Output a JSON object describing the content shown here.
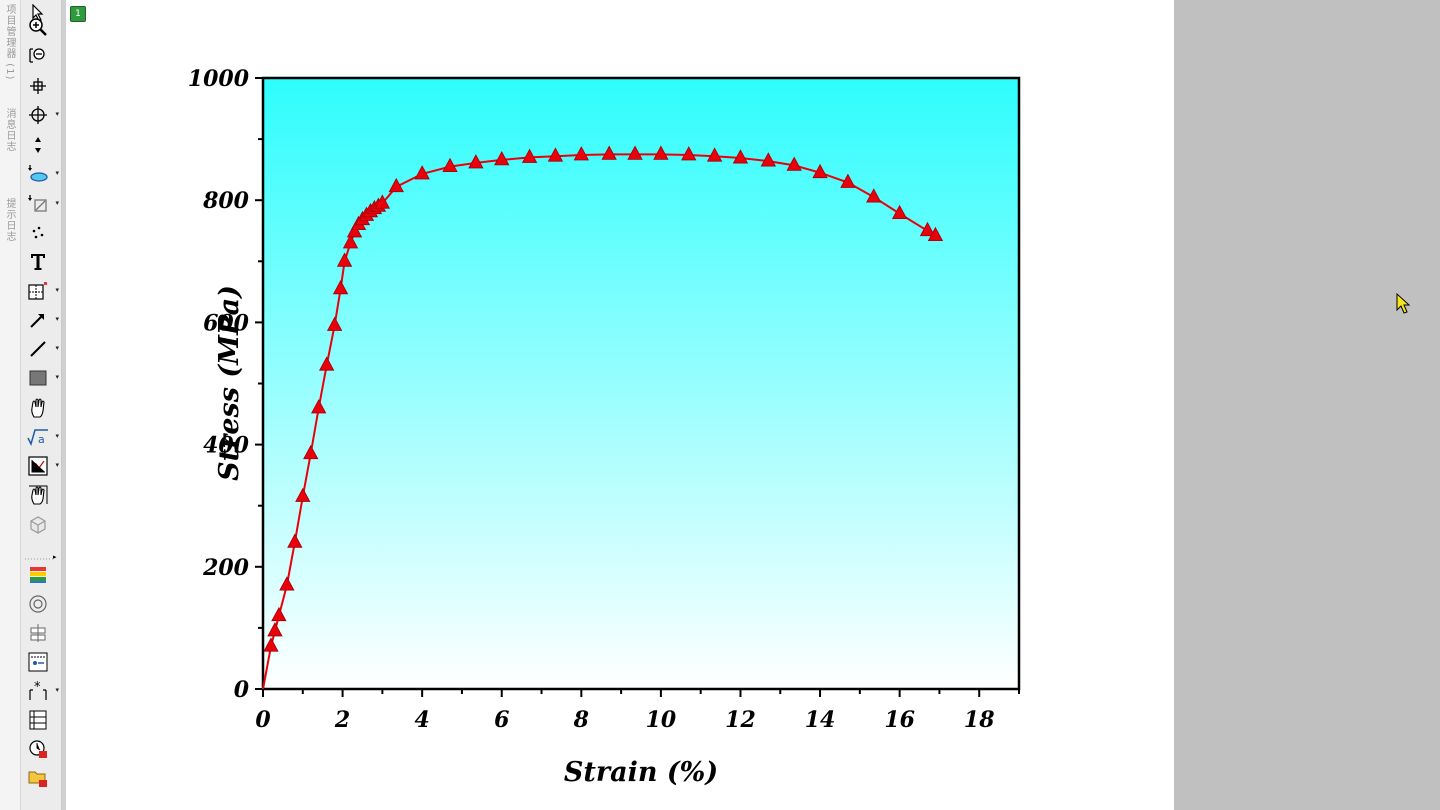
{
  "side_tabs": [
    "项目管理器 (1)",
    "消息日志",
    "提示日志"
  ],
  "layer_label": "1",
  "toolbar": {
    "tools": [
      "pointer-icon",
      "zoom-in-icon",
      "zoom-out-icon",
      "scale-icon",
      "screen-reader-icon",
      "data-reader-icon",
      "data-selector-icon",
      "mask-icon",
      "draw-data-icon",
      "text-tool-icon",
      "color-scale-icon",
      "arrow-tool-icon",
      "line-tool-icon",
      "rectangle-tool-icon",
      "region-of-interest-icon",
      "insert-equation-icon",
      "insert-graph-icon",
      "move-object-icon",
      "3d-rotate-icon"
    ],
    "bottom_tools": [
      "layer-color-icon",
      "polar-icon",
      "column-plot-icon",
      "add-scale-icon",
      "add-asterisk-icon",
      "table-icon",
      "clock-icon",
      "folder-icon"
    ]
  },
  "chart_data": {
    "type": "line",
    "xlabel": "Strain (%)",
    "ylabel": "Stress (MPa)",
    "xlim": [
      0,
      19
    ],
    "ylim": [
      0,
      1000
    ],
    "xticks": [
      "0",
      "2",
      "4",
      "6",
      "8",
      "10",
      "12",
      "14",
      "16",
      "18"
    ],
    "yticks": [
      "0",
      "200",
      "400",
      "600",
      "800",
      "1000"
    ],
    "background_gradient": [
      "#2efdfd",
      "#ffffff"
    ],
    "series": [
      {
        "marker": "triangle",
        "color": "#e8000b",
        "x": [
          0.0,
          0.2,
          0.3,
          0.4,
          0.6,
          0.8,
          1.0,
          1.2,
          1.4,
          1.6,
          1.8,
          1.95,
          2.05,
          2.2,
          2.3,
          2.4,
          2.5,
          2.6,
          2.7,
          2.8,
          2.9,
          3.0,
          3.35,
          4.0,
          4.7,
          5.35,
          6.0,
          6.7,
          7.35,
          8.0,
          8.7,
          9.35,
          10.0,
          10.7,
          11.35,
          12.0,
          12.7,
          13.35,
          14.0,
          14.7,
          15.35,
          16.0,
          16.7,
          16.9
        ],
        "y": [
          0,
          70,
          95,
          120,
          170,
          240,
          315,
          385,
          460,
          530,
          595,
          655,
          700,
          730,
          748,
          760,
          768,
          775,
          781,
          786,
          790,
          795,
          822,
          843,
          855,
          861,
          866,
          870,
          872,
          874,
          875,
          875,
          875,
          874,
          872,
          869,
          864,
          857,
          845,
          829,
          805,
          778,
          750,
          742
        ]
      }
    ]
  }
}
